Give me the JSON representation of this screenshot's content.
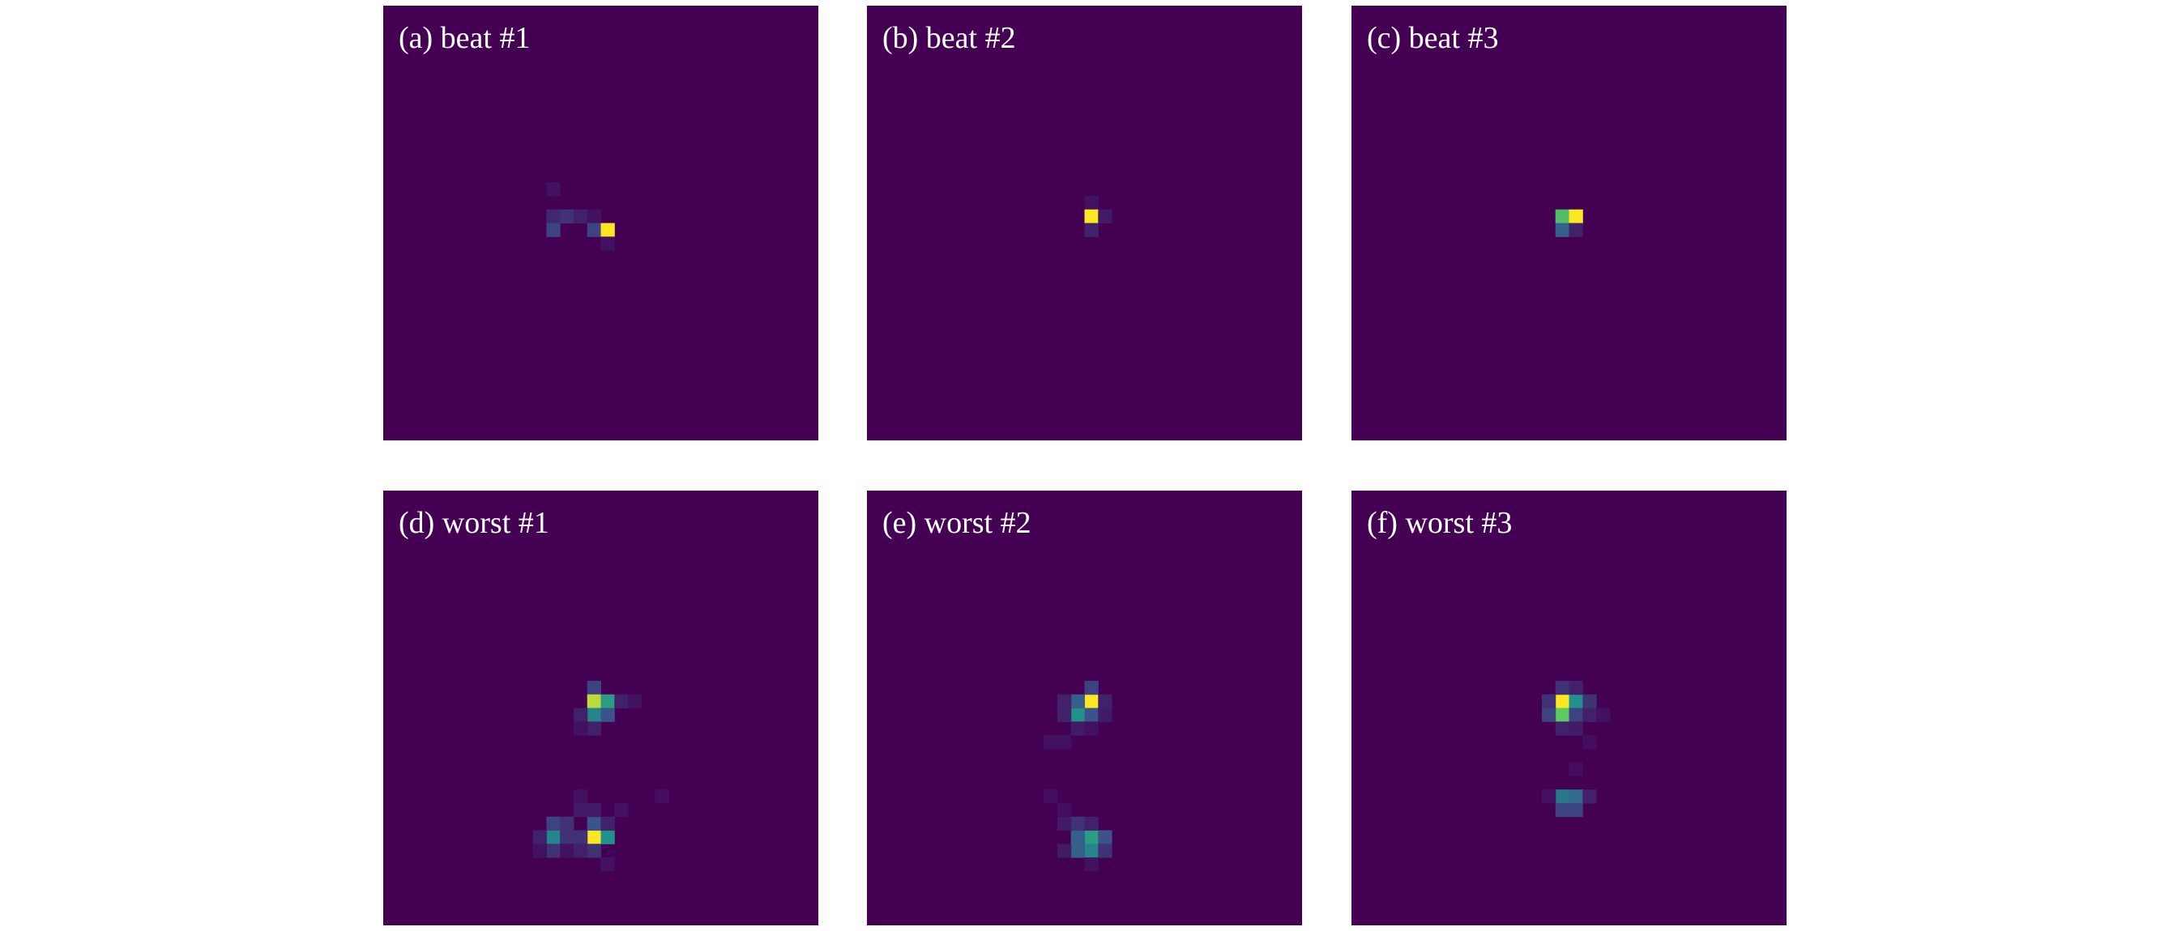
{
  "panels": [
    {
      "title": "(a) beat #1",
      "cells": [
        [
          12,
          13,
          0.05
        ],
        [
          12,
          15,
          0.12
        ],
        [
          13,
          15,
          0.15
        ],
        [
          14,
          15,
          0.1
        ],
        [
          15,
          15,
          0.05
        ],
        [
          12,
          16,
          0.2
        ],
        [
          15,
          16,
          0.2
        ],
        [
          16,
          16,
          1
        ],
        [
          16,
          17,
          0.05
        ]
      ]
    },
    {
      "title": "(b) beat #2",
      "cells": [
        [
          16,
          14,
          0.05
        ],
        [
          16,
          15,
          1
        ],
        [
          17,
          15,
          0.08
        ],
        [
          16,
          16,
          0.1
        ]
      ]
    },
    {
      "title": "(c) beat #3",
      "cells": [
        [
          15,
          15,
          0.7
        ],
        [
          16,
          15,
          1
        ],
        [
          15,
          16,
          0.3
        ],
        [
          16,
          16,
          0.1
        ]
      ]
    },
    {
      "title": "(d) worst #1",
      "cells": [
        [
          15,
          14,
          0.2
        ],
        [
          15,
          15,
          0.9
        ],
        [
          16,
          15,
          0.55
        ],
        [
          15,
          16,
          0.45
        ],
        [
          16,
          16,
          0.25
        ],
        [
          14,
          16,
          0.1
        ],
        [
          17,
          15,
          0.1
        ],
        [
          15,
          17,
          0.1
        ],
        [
          14,
          17,
          0.05
        ],
        [
          18,
          15,
          0.05
        ],
        [
          15,
          25,
          1
        ],
        [
          16,
          25,
          0.5
        ],
        [
          12,
          25,
          0.45
        ],
        [
          12,
          24,
          0.2
        ],
        [
          13,
          24,
          0.15
        ],
        [
          13,
          25,
          0.15
        ],
        [
          14,
          25,
          0.15
        ],
        [
          15,
          24,
          0.25
        ],
        [
          11,
          25,
          0.1
        ],
        [
          12,
          26,
          0.15
        ],
        [
          15,
          26,
          0.15
        ],
        [
          14,
          23,
          0.08
        ],
        [
          15,
          23,
          0.08
        ],
        [
          16,
          24,
          0.1
        ],
        [
          14,
          22,
          0.05
        ],
        [
          17,
          23,
          0.05
        ],
        [
          16,
          27,
          0.05
        ],
        [
          20,
          22,
          0.04
        ],
        [
          11,
          26,
          0.05
        ],
        [
          13,
          26,
          0.05
        ],
        [
          14,
          26,
          0.1
        ]
      ]
    },
    {
      "title": "(e) worst #2",
      "cells": [
        [
          16,
          15,
          1
        ],
        [
          15,
          16,
          0.5
        ],
        [
          15,
          15,
          0.3
        ],
        [
          16,
          14,
          0.2
        ],
        [
          16,
          16,
          0.25
        ],
        [
          14,
          15,
          0.1
        ],
        [
          14,
          16,
          0.1
        ],
        [
          17,
          15,
          0.1
        ],
        [
          17,
          16,
          0.08
        ],
        [
          15,
          17,
          0.08
        ],
        [
          16,
          17,
          0.05
        ],
        [
          13,
          18,
          0.05
        ],
        [
          14,
          18,
          0.05
        ],
        [
          16,
          25,
          0.55
        ],
        [
          15,
          25,
          0.3
        ],
        [
          16,
          26,
          0.45
        ],
        [
          15,
          26,
          0.3
        ],
        [
          17,
          25,
          0.25
        ],
        [
          17,
          26,
          0.15
        ],
        [
          15,
          24,
          0.15
        ],
        [
          16,
          24,
          0.1
        ],
        [
          14,
          24,
          0.08
        ],
        [
          14,
          26,
          0.08
        ],
        [
          16,
          27,
          0.05
        ],
        [
          13,
          22,
          0.04
        ],
        [
          14,
          23,
          0.04
        ]
      ]
    },
    {
      "title": "(f) worst #3",
      "cells": [
        [
          15,
          15,
          1
        ],
        [
          15,
          16,
          0.75
        ],
        [
          16,
          15,
          0.5
        ],
        [
          16,
          16,
          0.2
        ],
        [
          14,
          15,
          0.15
        ],
        [
          14,
          16,
          0.2
        ],
        [
          17,
          15,
          0.15
        ],
        [
          17,
          16,
          0.1
        ],
        [
          15,
          14,
          0.15
        ],
        [
          16,
          14,
          0.1
        ],
        [
          15,
          17,
          0.1
        ],
        [
          16,
          17,
          0.08
        ],
        [
          18,
          16,
          0.05
        ],
        [
          17,
          18,
          0.04
        ],
        [
          15,
          22,
          0.4
        ],
        [
          16,
          22,
          0.35
        ],
        [
          15,
          23,
          0.2
        ],
        [
          16,
          23,
          0.2
        ],
        [
          17,
          22,
          0.1
        ],
        [
          14,
          22,
          0.05
        ],
        [
          16,
          20,
          0.04
        ]
      ]
    }
  ]
}
